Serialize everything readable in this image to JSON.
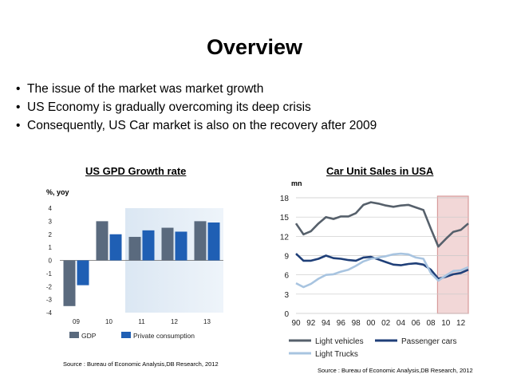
{
  "slide": {
    "title": "Overview",
    "bullets": [
      "The issue of the market was market growth",
      "US Economy is gradually overcoming its deep crisis",
      "Consequently, US Car market is also on the recovery after 2009"
    ],
    "bullet_glyph": "•"
  },
  "colors": {
    "gdp": "#5a6a7e",
    "private_consumption": "#1f5fb4",
    "forecast_shade_left": "#dbe7f3",
    "forecast_shade_right": "#eef4fa",
    "light_vehicles": "#56606b",
    "passenger_cars": "#1f3f78",
    "light_trucks": "#a8c4e0",
    "sales_forecast_shade": "#f2d7d7",
    "sales_forecast_border": "#d79a9a"
  },
  "chart_data": [
    {
      "type": "bar",
      "title": "US GPD Growth rate",
      "ylabel": "%, yoy",
      "categories": [
        "09",
        "10",
        "11",
        "12",
        "13"
      ],
      "series": [
        {
          "name": "GDP",
          "values": [
            -3.5,
            3.0,
            1.8,
            2.5,
            3.0
          ]
        },
        {
          "name": "Private consumption",
          "values": [
            -1.9,
            2.0,
            2.3,
            2.2,
            2.9
          ]
        }
      ],
      "ylim": [
        -4,
        4
      ],
      "yticks": [
        4,
        3,
        2,
        1,
        0,
        -1,
        -2,
        -3,
        -4
      ],
      "forecast_from": "11",
      "source": "Source : Bureau of Economic Analysis,DB Research, 2012"
    },
    {
      "type": "line",
      "title": "Car Unit Sales in USA",
      "ylabel": "mn",
      "x": [
        1990,
        1991,
        1992,
        1993,
        1994,
        1995,
        1996,
        1997,
        1998,
        1999,
        2000,
        2001,
        2002,
        2003,
        2004,
        2005,
        2006,
        2007,
        2008,
        2009,
        2010,
        2011,
        2012,
        2013
      ],
      "xticks": [
        "90",
        "92",
        "94",
        "96",
        "98",
        "00",
        "02",
        "04",
        "06",
        "08",
        "10",
        "12"
      ],
      "series": [
        {
          "name": "Light vehicles",
          "values": [
            14.0,
            12.3,
            12.8,
            14.0,
            15.0,
            14.7,
            15.1,
            15.1,
            15.6,
            16.9,
            17.3,
            17.1,
            16.8,
            16.6,
            16.8,
            16.9,
            16.5,
            16.1,
            13.2,
            10.4,
            11.6,
            12.7,
            13.0,
            14.0
          ]
        },
        {
          "name": "Passenger cars",
          "values": [
            9.3,
            8.2,
            8.2,
            8.5,
            9.0,
            8.6,
            8.5,
            8.3,
            8.2,
            8.7,
            8.8,
            8.4,
            8.0,
            7.6,
            7.5,
            7.7,
            7.8,
            7.6,
            6.8,
            5.4,
            5.7,
            6.1,
            6.3,
            6.8
          ]
        },
        {
          "name": "Light Trucks",
          "values": [
            4.7,
            4.1,
            4.6,
            5.4,
            6.0,
            6.1,
            6.5,
            6.8,
            7.4,
            8.1,
            8.5,
            8.7,
            8.9,
            9.2,
            9.3,
            9.2,
            8.7,
            8.5,
            6.3,
            5.1,
            5.9,
            6.6,
            6.7,
            7.2
          ]
        }
      ],
      "ylim": [
        0,
        18
      ],
      "yticks": [
        18,
        15,
        12,
        9,
        6,
        3,
        0
      ],
      "forecast_from": 2009,
      "source": "Source : Bureau of Economic Analysis,DB Research, 2012"
    }
  ]
}
